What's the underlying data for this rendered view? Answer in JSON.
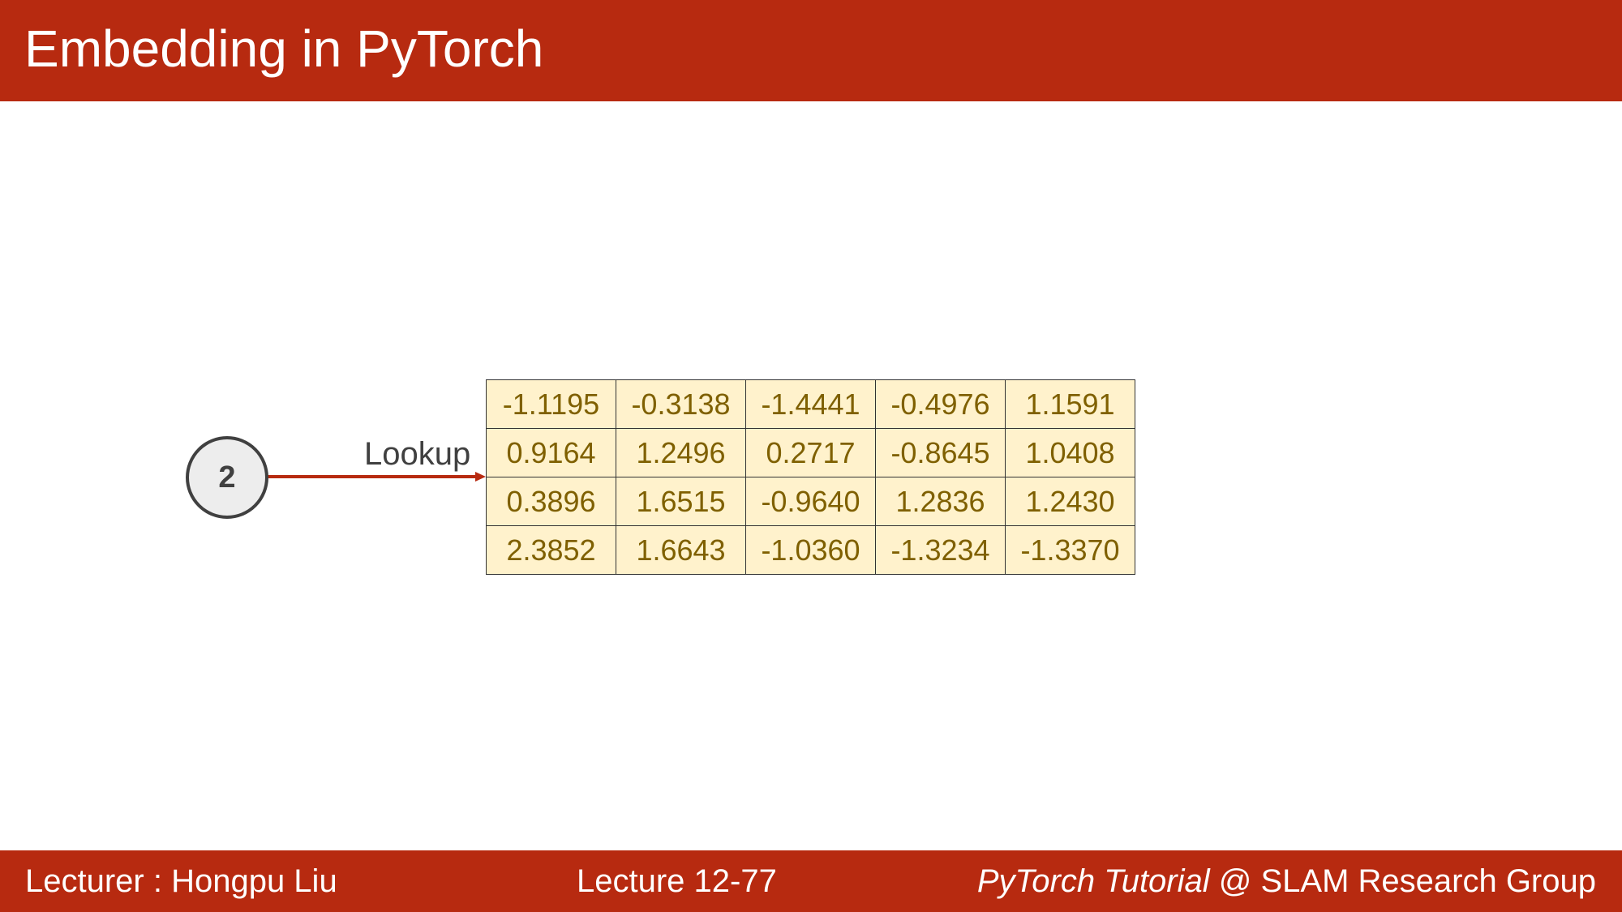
{
  "slide": {
    "title": "Embedding in PyTorch"
  },
  "footer": {
    "lecturer": "Lecturer : Hongpu Liu",
    "lecture": "Lecture 12-77",
    "course_italic": "PyTorch Tutorial",
    "course_rest": " @ SLAM Research Group"
  },
  "diagram": {
    "input_index": "2",
    "arrow_label": "Lookup",
    "embedding_matrix": [
      [
        "-1.1195",
        "-0.3138",
        "-1.4441",
        "-0.4976",
        "1.1591"
      ],
      [
        "0.9164",
        "1.2496",
        "0.2717",
        "-0.8645",
        "1.0408"
      ],
      [
        "0.3896",
        "1.6515",
        "-0.9640",
        "1.2836",
        "1.2430"
      ],
      [
        "2.3852",
        "1.6643",
        "-1.0360",
        "-1.3234",
        "-1.3370"
      ]
    ]
  },
  "colors": {
    "brand_red": "#B72A10",
    "cell_fill": "#FFF2CC",
    "cell_text": "#7F6000",
    "node_fill": "#EDEDED"
  }
}
